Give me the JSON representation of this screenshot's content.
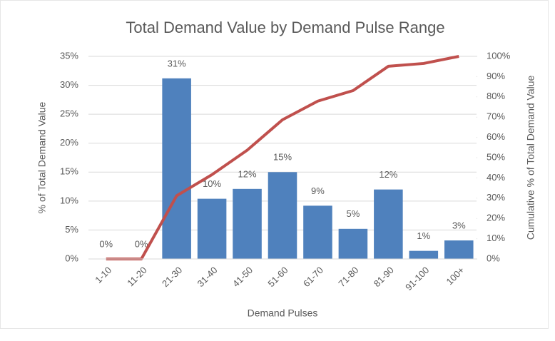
{
  "chart_data": {
    "type": "bar-line",
    "title": "Total Demand Value by Demand Pulse Range",
    "x_label": "Demand Pulses",
    "y_label": "% of Total Demand Value",
    "y2_label": "Cumulative % of Total Demand Value",
    "categories": [
      "1-10",
      "11-20",
      "21-30",
      "31-40",
      "41-50",
      "51-60",
      "61-70",
      "71-80",
      "81-90",
      "91-100",
      "100+"
    ],
    "series": [
      {
        "type": "bar",
        "axis": "y",
        "color": "#4f81bd",
        "values": [
          0,
          0,
          31.2,
          10.4,
          12.1,
          15.0,
          9.2,
          5.2,
          12.0,
          1.4,
          3.2
        ],
        "value_labels": [
          "0%",
          "0%",
          "31%",
          "10%",
          "12%",
          "15%",
          "9%",
          "5%",
          "12%",
          "1%",
          "3%"
        ]
      },
      {
        "type": "line",
        "axis": "y2",
        "color": "#c0504d",
        "values": [
          0,
          0,
          31.2,
          41.6,
          53.7,
          68.7,
          77.9,
          83.1,
          95.1,
          96.5,
          100
        ]
      }
    ],
    "ylim": [
      0,
      35
    ],
    "yticks": [
      {
        "value": 0,
        "label": "0%"
      },
      {
        "value": 5,
        "label": "5%"
      },
      {
        "value": 10,
        "label": "10%"
      },
      {
        "value": 15,
        "label": "15%"
      },
      {
        "value": 20,
        "label": "20%"
      },
      {
        "value": 25,
        "label": "25%"
      },
      {
        "value": 30,
        "label": "30%"
      },
      {
        "value": 35,
        "label": "35%"
      }
    ],
    "y2lim": [
      0,
      100
    ],
    "y2ticks": [
      {
        "value": 0,
        "label": "0%"
      },
      {
        "value": 10,
        "label": "10%"
      },
      {
        "value": 20,
        "label": "20%"
      },
      {
        "value": 30,
        "label": "30%"
      },
      {
        "value": 40,
        "label": "40%"
      },
      {
        "value": 50,
        "label": "50%"
      },
      {
        "value": 60,
        "label": "60%"
      },
      {
        "value": 70,
        "label": "70%"
      },
      {
        "value": 80,
        "label": "80%"
      },
      {
        "value": 90,
        "label": "90%"
      },
      {
        "value": 100,
        "label": "100%"
      }
    ],
    "grid": true
  }
}
